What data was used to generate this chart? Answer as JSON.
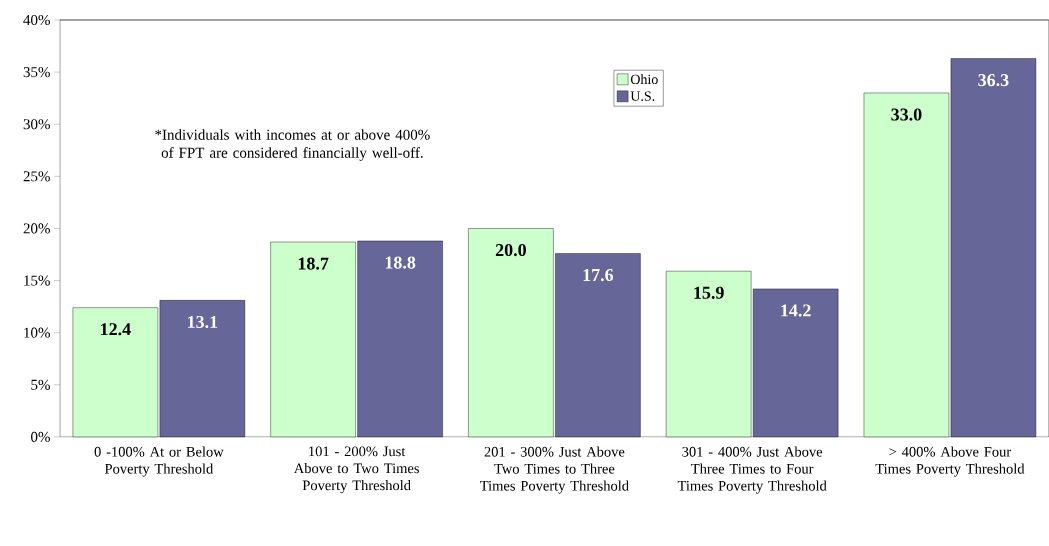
{
  "chart_data": {
    "type": "bar",
    "categories": [
      "0 -100% At or Below Poverty Threshold",
      "101 - 200% Just Above to Two Times Poverty Threshold",
      "201 - 300% Just Above Two Times to Three Times Poverty Threshold",
      "301 - 400% Just Above Three Times to Four Times Poverty Threshold",
      "> 400% Above Four Times Poverty Threshold"
    ],
    "series": [
      {
        "name": "Ohio",
        "color": "#ccffcc",
        "values": [
          12.4,
          18.7,
          20.0,
          15.9,
          33.0
        ],
        "value_labels": [
          "12.4",
          "18.7",
          "20.0",
          "15.9",
          "33.0"
        ]
      },
      {
        "name": "U.S.",
        "color": "#666699",
        "values": [
          13.1,
          18.8,
          17.6,
          14.2,
          36.3
        ],
        "value_labels": [
          "13.1",
          "18.8",
          "17.6",
          "14.2",
          "36.3"
        ]
      }
    ],
    "ylim": [
      0,
      40
    ],
    "yticks": [
      {
        "value": 0,
        "label": "0%"
      },
      {
        "value": 5,
        "label": "5%"
      },
      {
        "value": 10,
        "label": "10%"
      },
      {
        "value": 15,
        "label": "15%"
      },
      {
        "value": 20,
        "label": "20%"
      },
      {
        "value": 25,
        "label": "25%"
      },
      {
        "value": 30,
        "label": "30%"
      },
      {
        "value": 35,
        "label": "35%"
      },
      {
        "value": 40,
        "label": "40%"
      }
    ],
    "legend": "top",
    "annotations": [
      "*Individuals with incomes at or above 400% of FPT are considered financially well-off."
    ]
  }
}
